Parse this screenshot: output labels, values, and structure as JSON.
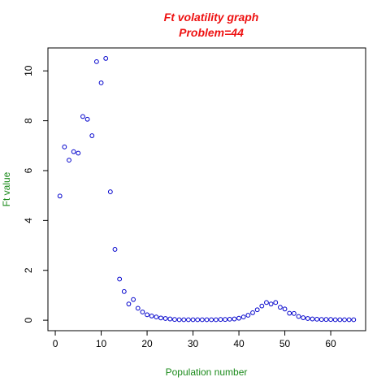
{
  "chart_data": {
    "type": "scatter",
    "title": "Ft volatility graph",
    "subtitle": "Problem=44",
    "xlabel": "Population number",
    "ylabel": "Ft value",
    "xlim": [
      -1.6,
      67.6
    ],
    "ylim": [
      -0.42,
      10.92
    ],
    "x_ticks": [
      0,
      10,
      20,
      30,
      40,
      50,
      60
    ],
    "y_ticks": [
      0,
      2,
      4,
      6,
      8,
      10
    ],
    "grid": false,
    "legend": "none",
    "colors": {
      "title": "#ee1111",
      "axis_label": "#1a8a1a",
      "points": "#0000cc",
      "axes": "#000000"
    },
    "x": [
      1,
      2,
      3,
      4,
      5,
      6,
      7,
      8,
      9,
      10,
      11,
      12,
      13,
      14,
      15,
      16,
      17,
      18,
      19,
      20,
      21,
      22,
      23,
      24,
      25,
      26,
      27,
      28,
      29,
      30,
      31,
      32,
      33,
      34,
      35,
      36,
      37,
      38,
      39,
      40,
      41,
      42,
      43,
      44,
      45,
      46,
      47,
      48,
      49,
      50,
      51,
      52,
      53,
      54,
      55,
      56,
      57,
      58,
      59,
      60,
      61,
      62,
      63,
      64,
      65
    ],
    "y": [
      4.98,
      6.95,
      6.42,
      6.76,
      6.7,
      8.17,
      8.06,
      7.4,
      10.37,
      9.52,
      10.5,
      5.15,
      2.84,
      1.65,
      1.15,
      0.65,
      0.83,
      0.48,
      0.33,
      0.22,
      0.17,
      0.13,
      0.09,
      0.07,
      0.05,
      0.03,
      0.02,
      0.02,
      0.02,
      0.02,
      0.02,
      0.02,
      0.02,
      0.02,
      0.02,
      0.03,
      0.03,
      0.04,
      0.05,
      0.08,
      0.13,
      0.2,
      0.3,
      0.42,
      0.57,
      0.71,
      0.65,
      0.71,
      0.52,
      0.45,
      0.28,
      0.27,
      0.15,
      0.1,
      0.07,
      0.05,
      0.04,
      0.03,
      0.03,
      0.03,
      0.02,
      0.02,
      0.02,
      0.02,
      0.02
    ]
  }
}
